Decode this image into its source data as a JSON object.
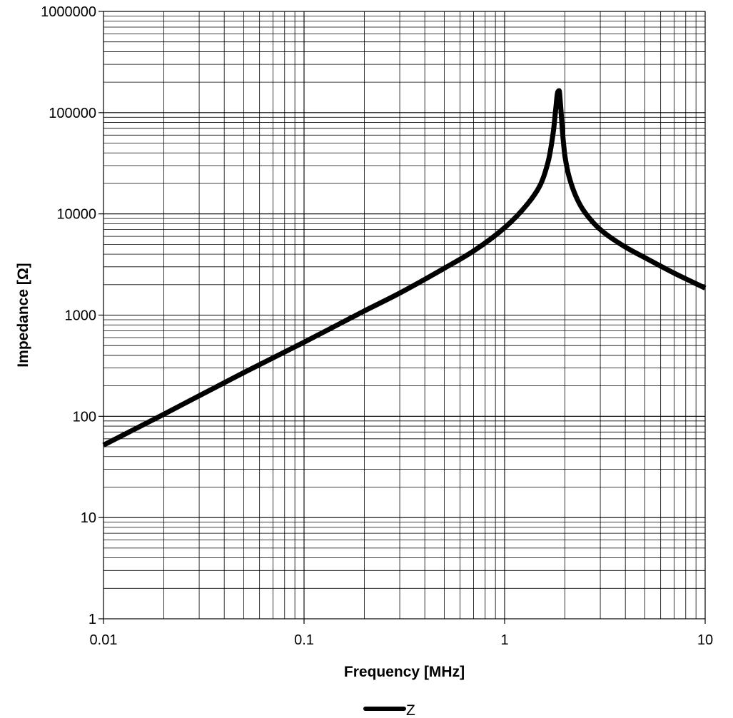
{
  "chart_data": {
    "type": "line",
    "xlabel": "Frequency [MHz]",
    "ylabel": "Impedance [Ω]",
    "x_scale": "log",
    "y_scale": "log",
    "xlim": [
      0.01,
      10
    ],
    "ylim": [
      1,
      1000000
    ],
    "x_ticks": [
      {
        "value": 0.01,
        "label": "0.01"
      },
      {
        "value": 0.1,
        "label": "0.1"
      },
      {
        "value": 1,
        "label": "1"
      },
      {
        "value": 10,
        "label": "10"
      }
    ],
    "y_ticks": [
      {
        "value": 1,
        "label": "1"
      },
      {
        "value": 10,
        "label": "10"
      },
      {
        "value": 100,
        "label": "100"
      },
      {
        "value": 1000,
        "label": "1000"
      },
      {
        "value": 10000,
        "label": "10000"
      },
      {
        "value": 100000,
        "label": "100000"
      },
      {
        "value": 1000000,
        "label": "1000000"
      }
    ],
    "grid": true,
    "legend_position": "bottom",
    "series": [
      {
        "name": "Z",
        "color": "#000000",
        "x": [
          0.01,
          0.02,
          0.05,
          0.1,
          0.2,
          0.3,
          0.5,
          0.7,
          1.0,
          1.3,
          1.5,
          1.65,
          1.75,
          1.8,
          1.84,
          1.87,
          1.9,
          1.95,
          2.0,
          2.1,
          2.3,
          2.5,
          3.0,
          4.0,
          5.0,
          7.0,
          10.0
        ],
        "y": [
          52,
          105,
          270,
          540,
          1100,
          1650,
          2900,
          4300,
          7300,
          12500,
          19000,
          33000,
          65000,
          110000,
          160000,
          165000,
          120000,
          60000,
          37000,
          23000,
          14000,
          10500,
          7000,
          4700,
          3700,
          2600,
          1850
        ]
      }
    ]
  }
}
